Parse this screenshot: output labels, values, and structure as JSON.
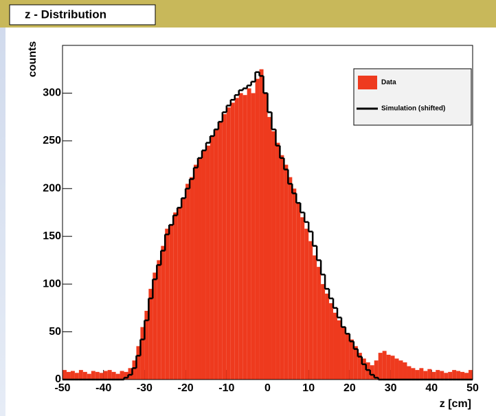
{
  "chart_data": {
    "type": "histogram",
    "title": "z - Distribution",
    "x_label": "z [cm]",
    "y_label": "counts",
    "bins": [
      -50,
      -49,
      -48,
      -47,
      -46,
      -45,
      -44,
      -43,
      -42,
      -41,
      -40,
      -39,
      -38,
      -37,
      -36,
      -35,
      -34,
      -33,
      -32,
      -31,
      -30,
      -29,
      -28,
      -27,
      -26,
      -25,
      -24,
      -23,
      -22,
      -21,
      -20,
      -19,
      -18,
      -17,
      -16,
      -15,
      -14,
      -13,
      -12,
      -11,
      -10,
      -9,
      -8,
      -7,
      -6,
      -5,
      -4,
      -3,
      -2,
      -1,
      0,
      1,
      2,
      3,
      4,
      5,
      6,
      7,
      8,
      9,
      10,
      11,
      12,
      13,
      14,
      15,
      16,
      17,
      18,
      19,
      20,
      21,
      22,
      23,
      24,
      25,
      26,
      27,
      28,
      29,
      30,
      31,
      32,
      33,
      34,
      35,
      36,
      37,
      38,
      39,
      40,
      41,
      42,
      43,
      44,
      45,
      46,
      47,
      48,
      49,
      50
    ],
    "series": [
      {
        "name": "Data",
        "color": "#ee3a1e",
        "style": "filled",
        "values": [
          10,
          8,
          9,
          7,
          10,
          8,
          6,
          9,
          8,
          7,
          9,
          10,
          8,
          6,
          9,
          8,
          12,
          20,
          35,
          55,
          72,
          95,
          112,
          125,
          140,
          158,
          162,
          175,
          180,
          190,
          205,
          212,
          225,
          232,
          240,
          245,
          255,
          262,
          270,
          278,
          285,
          290,
          295,
          300,
          298,
          305,
          300,
          315,
          325,
          300,
          275,
          260,
          248,
          235,
          225,
          212,
          200,
          185,
          170,
          158,
          145,
          130,
          118,
          100,
          90,
          80,
          70,
          62,
          55,
          48,
          42,
          35,
          28,
          22,
          18,
          15,
          20,
          28,
          30,
          26,
          25,
          22,
          20,
          18,
          14,
          12,
          10,
          12,
          9,
          11,
          8,
          10,
          9,
          7,
          8,
          10,
          9,
          8,
          7,
          10
        ]
      },
      {
        "name": "Simulation (shifted)",
        "color": "#000000",
        "style": "step",
        "values": [
          0,
          0,
          0,
          0,
          0,
          0,
          0,
          0,
          0,
          0,
          0,
          0,
          0,
          0,
          0,
          2,
          5,
          12,
          25,
          42,
          62,
          85,
          105,
          120,
          135,
          152,
          162,
          172,
          180,
          190,
          200,
          210,
          222,
          232,
          240,
          248,
          255,
          262,
          270,
          280,
          287,
          293,
          298,
          303,
          305,
          308,
          312,
          322,
          318,
          300,
          280,
          262,
          245,
          232,
          220,
          205,
          195,
          185,
          175,
          165,
          155,
          140,
          125,
          110,
          95,
          85,
          75,
          65,
          55,
          48,
          40,
          32,
          24,
          16,
          10,
          5,
          2,
          0,
          0,
          0,
          0,
          0,
          0,
          0,
          0,
          0,
          0,
          0,
          0,
          0,
          0,
          0,
          0,
          0,
          0,
          0,
          0,
          0,
          0,
          0
        ]
      }
    ],
    "xlim": [
      -50,
      50
    ],
    "ylim": [
      0,
      350
    ],
    "xticks": [
      -50,
      -40,
      -30,
      -20,
      -10,
      0,
      10,
      20,
      30,
      40,
      50
    ],
    "yticks": [
      0,
      50,
      100,
      150,
      200,
      250,
      300
    ]
  }
}
